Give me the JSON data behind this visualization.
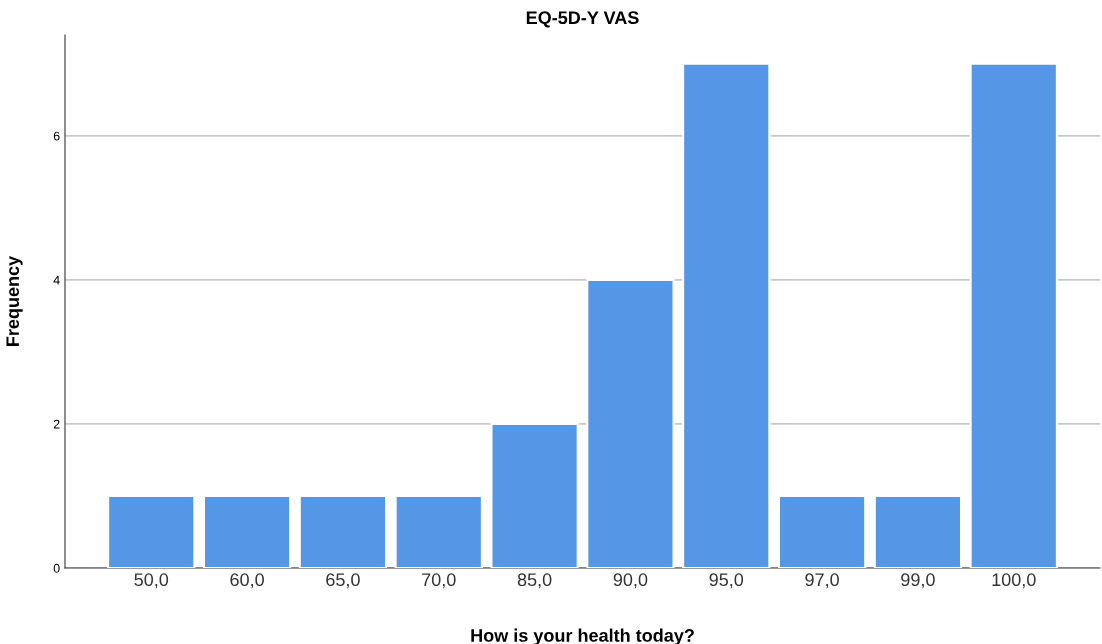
{
  "chart_data": {
    "type": "bar",
    "title": "EQ-5D-Y VAS",
    "xlabel": "How is your health today?",
    "ylabel": "Frequency",
    "categories": [
      "50,0",
      "60,0",
      "65,0",
      "70,0",
      "85,0",
      "90,0",
      "95,0",
      "97,0",
      "99,0",
      "100,0"
    ],
    "values": [
      1,
      1,
      1,
      1,
      2,
      4,
      7,
      1,
      1,
      7
    ],
    "color": "#5596e6",
    "ylim": [
      0,
      7.4
    ],
    "yticks": [
      0,
      2,
      4,
      6
    ],
    "grid": "y"
  }
}
